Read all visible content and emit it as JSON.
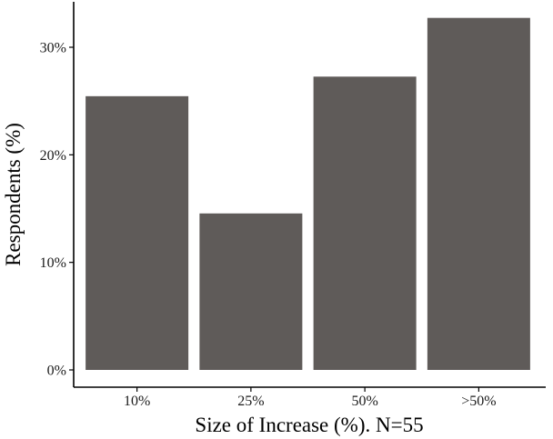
{
  "chart_data": {
    "type": "bar",
    "categories": [
      "10%",
      "25%",
      "50%",
      ">50%"
    ],
    "values": [
      25.45,
      14.55,
      27.27,
      32.73
    ],
    "xlabel": "Size of Increase (%). N=55",
    "ylabel": "Respondents (%)",
    "yticks": [
      0,
      10,
      20,
      30
    ],
    "ytick_labels": [
      "0%",
      "10%",
      "20%",
      "30%"
    ],
    "ylim": [
      0,
      34
    ],
    "grid": false,
    "legend": "none",
    "bar_color": "#5f5b59"
  }
}
